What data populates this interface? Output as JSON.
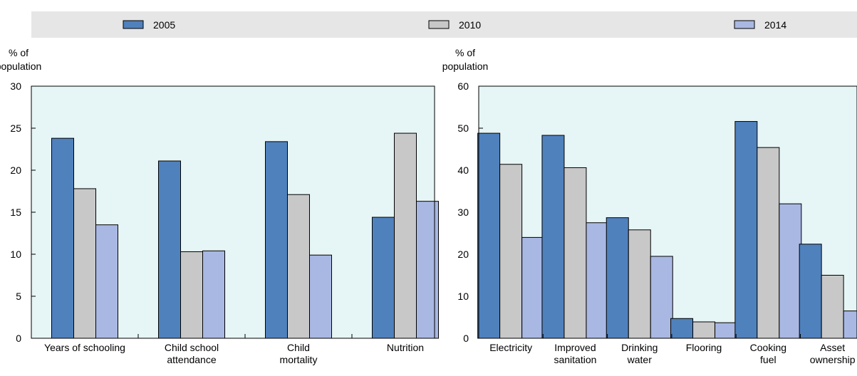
{
  "legend": {
    "items": [
      {
        "label": "2005",
        "color": "#4f81bd"
      },
      {
        "label": "2010",
        "color": "#c8c8c8"
      },
      {
        "label": "2014",
        "color": "#a9b8e3"
      }
    ]
  },
  "colors": {
    "plot_background": "#e6f5f5",
    "legend_background": "#e6e6e6",
    "bar_border": "#000000"
  },
  "chart_data": [
    {
      "type": "bar",
      "title": "",
      "xlabel": "",
      "ylabel": "% of population",
      "ylim": [
        0,
        30
      ],
      "yticks": [
        0,
        5,
        10,
        15,
        20,
        25,
        30
      ],
      "categories": [
        "Years of schooling",
        "Child school attendance",
        "Child mortality",
        "Nutrition"
      ],
      "category_lines": [
        [
          "Years of schooling"
        ],
        [
          "Child school",
          "attendance"
        ],
        [
          "Child",
          "mortality"
        ],
        [
          "Nutrition"
        ]
      ],
      "series": [
        {
          "name": "2005",
          "values": [
            23.8,
            21.1,
            23.4,
            14.4
          ]
        },
        {
          "name": "2010",
          "values": [
            17.8,
            10.3,
            17.1,
            24.4
          ]
        },
        {
          "name": "2014",
          "values": [
            13.5,
            10.4,
            9.9,
            16.3
          ]
        }
      ]
    },
    {
      "type": "bar",
      "title": "",
      "xlabel": "",
      "ylabel": "% of population",
      "ylim": [
        0,
        60
      ],
      "yticks": [
        0,
        10,
        20,
        30,
        40,
        50,
        60
      ],
      "categories": [
        "Electricity",
        "Improved sanitation",
        "Drinking water",
        "Flooring",
        "Cooking fuel",
        "Asset ownership"
      ],
      "category_lines": [
        [
          "Electricity"
        ],
        [
          "Improved",
          "sanitation"
        ],
        [
          "Drinking",
          "water"
        ],
        [
          "Flooring"
        ],
        [
          "Cooking",
          "fuel"
        ],
        [
          "Asset",
          "ownership"
        ]
      ],
      "series": [
        {
          "name": "2005",
          "values": [
            48.8,
            48.3,
            28.7,
            4.7,
            51.6,
            22.4
          ]
        },
        {
          "name": "2010",
          "values": [
            41.4,
            40.6,
            25.8,
            3.9,
            45.4,
            15.0
          ]
        },
        {
          "name": "2014",
          "values": [
            24.0,
            27.5,
            19.5,
            3.7,
            32.0,
            6.5
          ]
        }
      ]
    }
  ]
}
